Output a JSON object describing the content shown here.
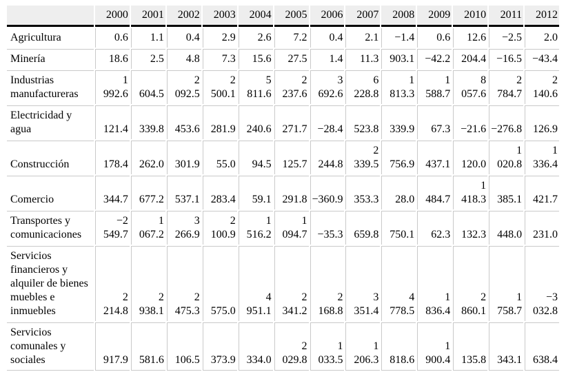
{
  "colors": {
    "header_bg": "#eeeeee",
    "grid_line": "#c9c9c9",
    "rule_line": "#000000"
  },
  "chart_data": {
    "type": "table",
    "columns": [
      "",
      "2000",
      "2001",
      "2002",
      "2003",
      "2004",
      "2005",
      "2006",
      "2007",
      "2008",
      "2009",
      "2010",
      "2011",
      "2012"
    ],
    "rows": [
      {
        "label": "Agricultura",
        "values": [
          "0.6",
          "1.1",
          "0.4",
          "2.9",
          "2.6",
          "7.2",
          "0.4",
          "2.1",
          "−1.4",
          "0.6",
          "12.6",
          "−2.5",
          "2.0"
        ]
      },
      {
        "label": "Minería",
        "values": [
          "18.6",
          "2.5",
          "4.8",
          "7.3",
          "15.6",
          "27.5",
          "1.4",
          "11.3",
          "903.1",
          "−42.2",
          "204.4",
          "−16.5",
          "−43.4"
        ]
      },
      {
        "label": "Industrias manufactureras",
        "values": [
          "1 992.6",
          "604.5",
          "2 092.5",
          "2 500.1",
          "5 811.6",
          "2 237.6",
          "3 692.6",
          "6 228.8",
          "1 813.3",
          "1 588.7",
          "8 057.6",
          "2 784.7",
          "2 140.6"
        ]
      },
      {
        "label": "Electricidad y agua",
        "values": [
          "121.4",
          "339.8",
          "453.6",
          "281.9",
          "240.6",
          "271.7",
          "−28.4",
          "523.8",
          "339.9",
          "67.3",
          "−21.6",
          "−276.8",
          "126.9"
        ]
      },
      {
        "label": "Construcción",
        "values": [
          "178.4",
          "262.0",
          "301.9",
          "55.0",
          "94.5",
          "125.7",
          "244.8",
          "2 339.5",
          "756.9",
          "437.1",
          "120.0",
          "1 020.8",
          "1 336.4"
        ]
      },
      {
        "label": "Comercio",
        "values": [
          "344.7",
          "677.2",
          "537.1",
          "283.4",
          "59.1",
          "291.8",
          "−360.9",
          "353.3",
          "28.0",
          "484.7",
          "1 418.3",
          "385.1",
          "421.7"
        ]
      },
      {
        "label": "Transportes y comunicaciones",
        "values": [
          "−2 549.7",
          "1 067.2",
          "3 266.9",
          "2 100.9",
          "1 516.2",
          "1 094.7",
          "−35.3",
          "659.8",
          "750.1",
          "62.3",
          "132.3",
          "448.0",
          "231.0"
        ]
      },
      {
        "label": "Servicios financieros y alquiler de bienes muebles e inmuebles",
        "values": [
          "2 214.8",
          "2 938.1",
          "2 475.3",
          "575.0",
          "4 951.1",
          "2 341.2",
          "2 168.8",
          "3 351.4",
          "4 778.5",
          "1 836.4",
          "2 860.1",
          "1 758.7",
          "−3 032.8"
        ]
      },
      {
        "label": "Servicios comunales y sociales",
        "values": [
          "917.9",
          "581.6",
          "106.5",
          "373.9",
          "334.0",
          "2 029.8",
          "1 033.5",
          "1 206.3",
          "818.6",
          "1 900.4",
          "135.8",
          "343.1",
          "638.4"
        ]
      }
    ]
  }
}
